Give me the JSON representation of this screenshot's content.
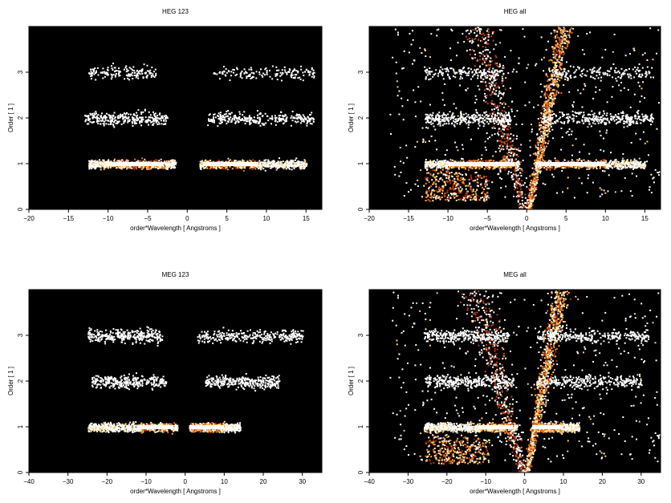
{
  "chart_data": [
    {
      "type": "heatmap",
      "title": "HEG 123",
      "xlabel": "order*Wavelength [ Angstroms ]",
      "ylabel": "Order [ 1 ]",
      "xlim": [
        -20,
        17
      ],
      "ylim": [
        0,
        4
      ],
      "xticks": [
        -20,
        -15,
        -10,
        -5,
        0,
        5,
        10,
        15
      ],
      "yticks": [
        0,
        1,
        2,
        3
      ],
      "bands": [
        {
          "order": 1,
          "x_ranges": [
            [
              -12.5,
              -1.5
            ],
            [
              1.5,
              15
            ]
          ],
          "core_ranges": [
            [
              -10,
              -3
            ],
            [
              2,
              9
            ]
          ],
          "density": "high"
        },
        {
          "order": 2,
          "x_ranges": [
            [
              -13,
              -2.5
            ],
            [
              2.5,
              16
            ]
          ],
          "density": "medium"
        },
        {
          "order": 3,
          "x_ranges": [
            [
              -12.5,
              -4
            ],
            [
              3,
              16
            ]
          ],
          "density": "low"
        }
      ]
    },
    {
      "type": "heatmap",
      "title": "HEG all",
      "xlabel": "order*Wavelength [ Angstroms ]",
      "ylabel": "Order [ 1 ]",
      "xlim": [
        -20,
        17
      ],
      "ylim": [
        0,
        4
      ],
      "xticks": [
        -20,
        -15,
        -10,
        -5,
        0,
        5,
        10,
        15
      ],
      "yticks": [
        0,
        1,
        2,
        3
      ],
      "bands": [
        {
          "order": 1,
          "x_ranges": [
            [
              -13,
              -1
            ],
            [
              1,
              15
            ]
          ],
          "core_ranges": [
            [
              -10,
              -1.5
            ],
            [
              1.5,
              10
            ]
          ],
          "density": "high"
        },
        {
          "order": 2,
          "x_ranges": [
            [
              -13,
              -2
            ],
            [
              2,
              16
            ]
          ],
          "density": "medium"
        },
        {
          "order": 3,
          "x_ranges": [
            [
              -13,
              -3
            ],
            [
              3,
              16
            ]
          ],
          "density": "low"
        }
      ],
      "background": "scattered",
      "wedge": true
    },
    {
      "type": "heatmap",
      "title": "MEG 123",
      "xlabel": "order*Wavelength [ Angstroms ]",
      "ylabel": "Order [ 1 ]",
      "xlim": [
        -40,
        35
      ],
      "ylim": [
        0,
        4
      ],
      "xticks": [
        -40,
        -30,
        -20,
        -10,
        0,
        10,
        20,
        30
      ],
      "yticks": [
        0,
        1,
        2,
        3
      ],
      "bands": [
        {
          "order": 1,
          "x_ranges": [
            [
              -25,
              -2
            ],
            [
              1,
              14
            ]
          ],
          "core_ranges": [
            [
              -12,
              -3
            ],
            [
              1,
              10
            ]
          ],
          "density": "high"
        },
        {
          "order": 2,
          "x_ranges": [
            [
              -24,
              -5
            ],
            [
              5,
              24
            ]
          ],
          "density": "medium"
        },
        {
          "order": 3,
          "x_ranges": [
            [
              -25,
              -6
            ],
            [
              3,
              30
            ]
          ],
          "density": "medium"
        }
      ]
    },
    {
      "type": "heatmap",
      "title": "MEG all",
      "xlabel": "order*Wavelength [ Angstroms ]",
      "ylabel": "Order [ 1 ]",
      "xlim": [
        -40,
        35
      ],
      "ylim": [
        0,
        4
      ],
      "xticks": [
        -40,
        -30,
        -20,
        -10,
        0,
        10,
        20,
        30
      ],
      "yticks": [
        0,
        1,
        2,
        3
      ],
      "bands": [
        {
          "order": 1,
          "x_ranges": [
            [
              -26,
              -2
            ],
            [
              2,
              14
            ]
          ],
          "core_ranges": [
            [
              -12,
              -3
            ],
            [
              2,
              10
            ]
          ],
          "density": "high"
        },
        {
          "order": 2,
          "x_ranges": [
            [
              -26,
              -3
            ],
            [
              3,
              30
            ]
          ],
          "density": "medium"
        },
        {
          "order": 3,
          "x_ranges": [
            [
              -26,
              -4
            ],
            [
              3,
              32
            ]
          ],
          "density": "medium"
        }
      ],
      "background": "scattered",
      "wedge": true
    }
  ]
}
